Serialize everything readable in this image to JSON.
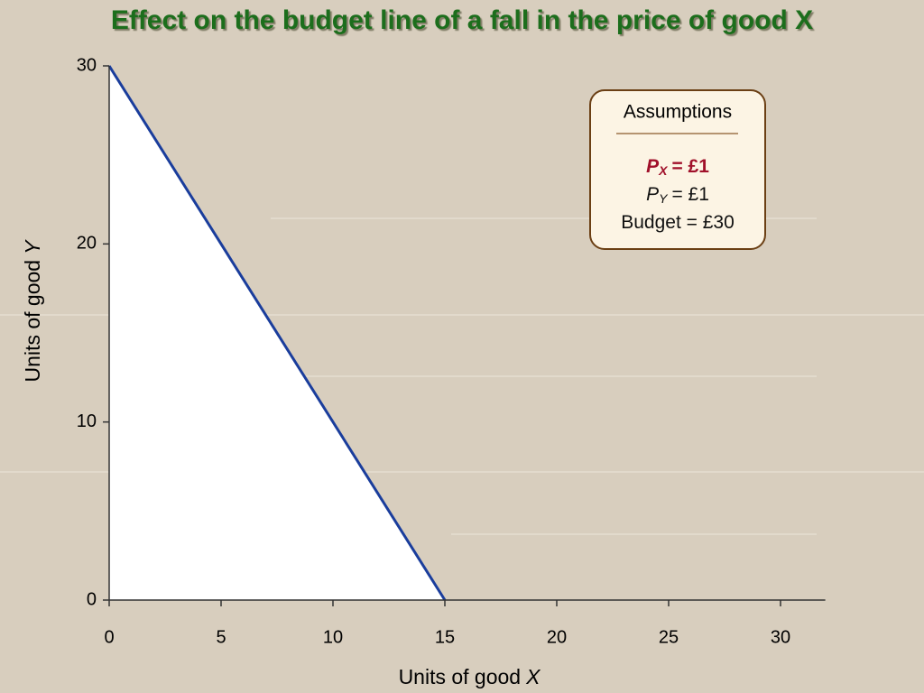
{
  "chart_data": {
    "type": "line",
    "title": "Effect on the budget line of a fall in the price of good X",
    "xlabel": {
      "text": "Units of good",
      "var": "X"
    },
    "ylabel": {
      "text": "Units of good",
      "var": "Y"
    },
    "series": [
      {
        "color": "#1a3d9c",
        "fill": "#ffffff",
        "x": [
          0,
          15
        ],
        "values": [
          30,
          0
        ]
      }
    ],
    "xlim": [
      0,
      32
    ],
    "ylim": [
      0,
      30
    ],
    "xticks": [
      0,
      5,
      10,
      15,
      20,
      25,
      30
    ],
    "yticks": [
      0,
      10,
      20,
      30
    ],
    "annotation": {
      "title": "Assumptions",
      "lines": [
        {
          "symbol": "P",
          "subscript": "X",
          "text": "= £1",
          "highlight": true
        },
        {
          "symbol": "P",
          "subscript": "Y",
          "text": "=  £1",
          "highlight": false
        },
        {
          "text": "Budget = £30"
        }
      ]
    }
  }
}
